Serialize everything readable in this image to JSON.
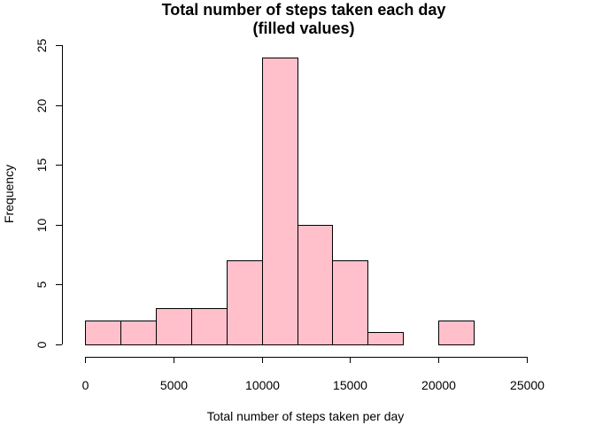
{
  "chart_data": {
    "type": "bar",
    "title": "Total number of steps taken each day",
    "subtitle": "(filled values)",
    "xlabel": "Total number of steps taken per day",
    "ylabel": "Frequency",
    "bin_edges": [
      0,
      2000,
      4000,
      6000,
      8000,
      10000,
      12000,
      14000,
      16000,
      18000,
      20000,
      22000
    ],
    "values": [
      2,
      2,
      3,
      3,
      7,
      24,
      10,
      7,
      1,
      0,
      2
    ],
    "xlim": [
      0,
      25000
    ],
    "ylim": [
      0,
      25
    ],
    "x_ticks": [
      0,
      5000,
      10000,
      15000,
      20000,
      25000
    ],
    "y_ticks": [
      0,
      5,
      10,
      15,
      20,
      25
    ],
    "grid": false,
    "bar_color": "#ffc0cb",
    "edge_color": "#000000"
  }
}
